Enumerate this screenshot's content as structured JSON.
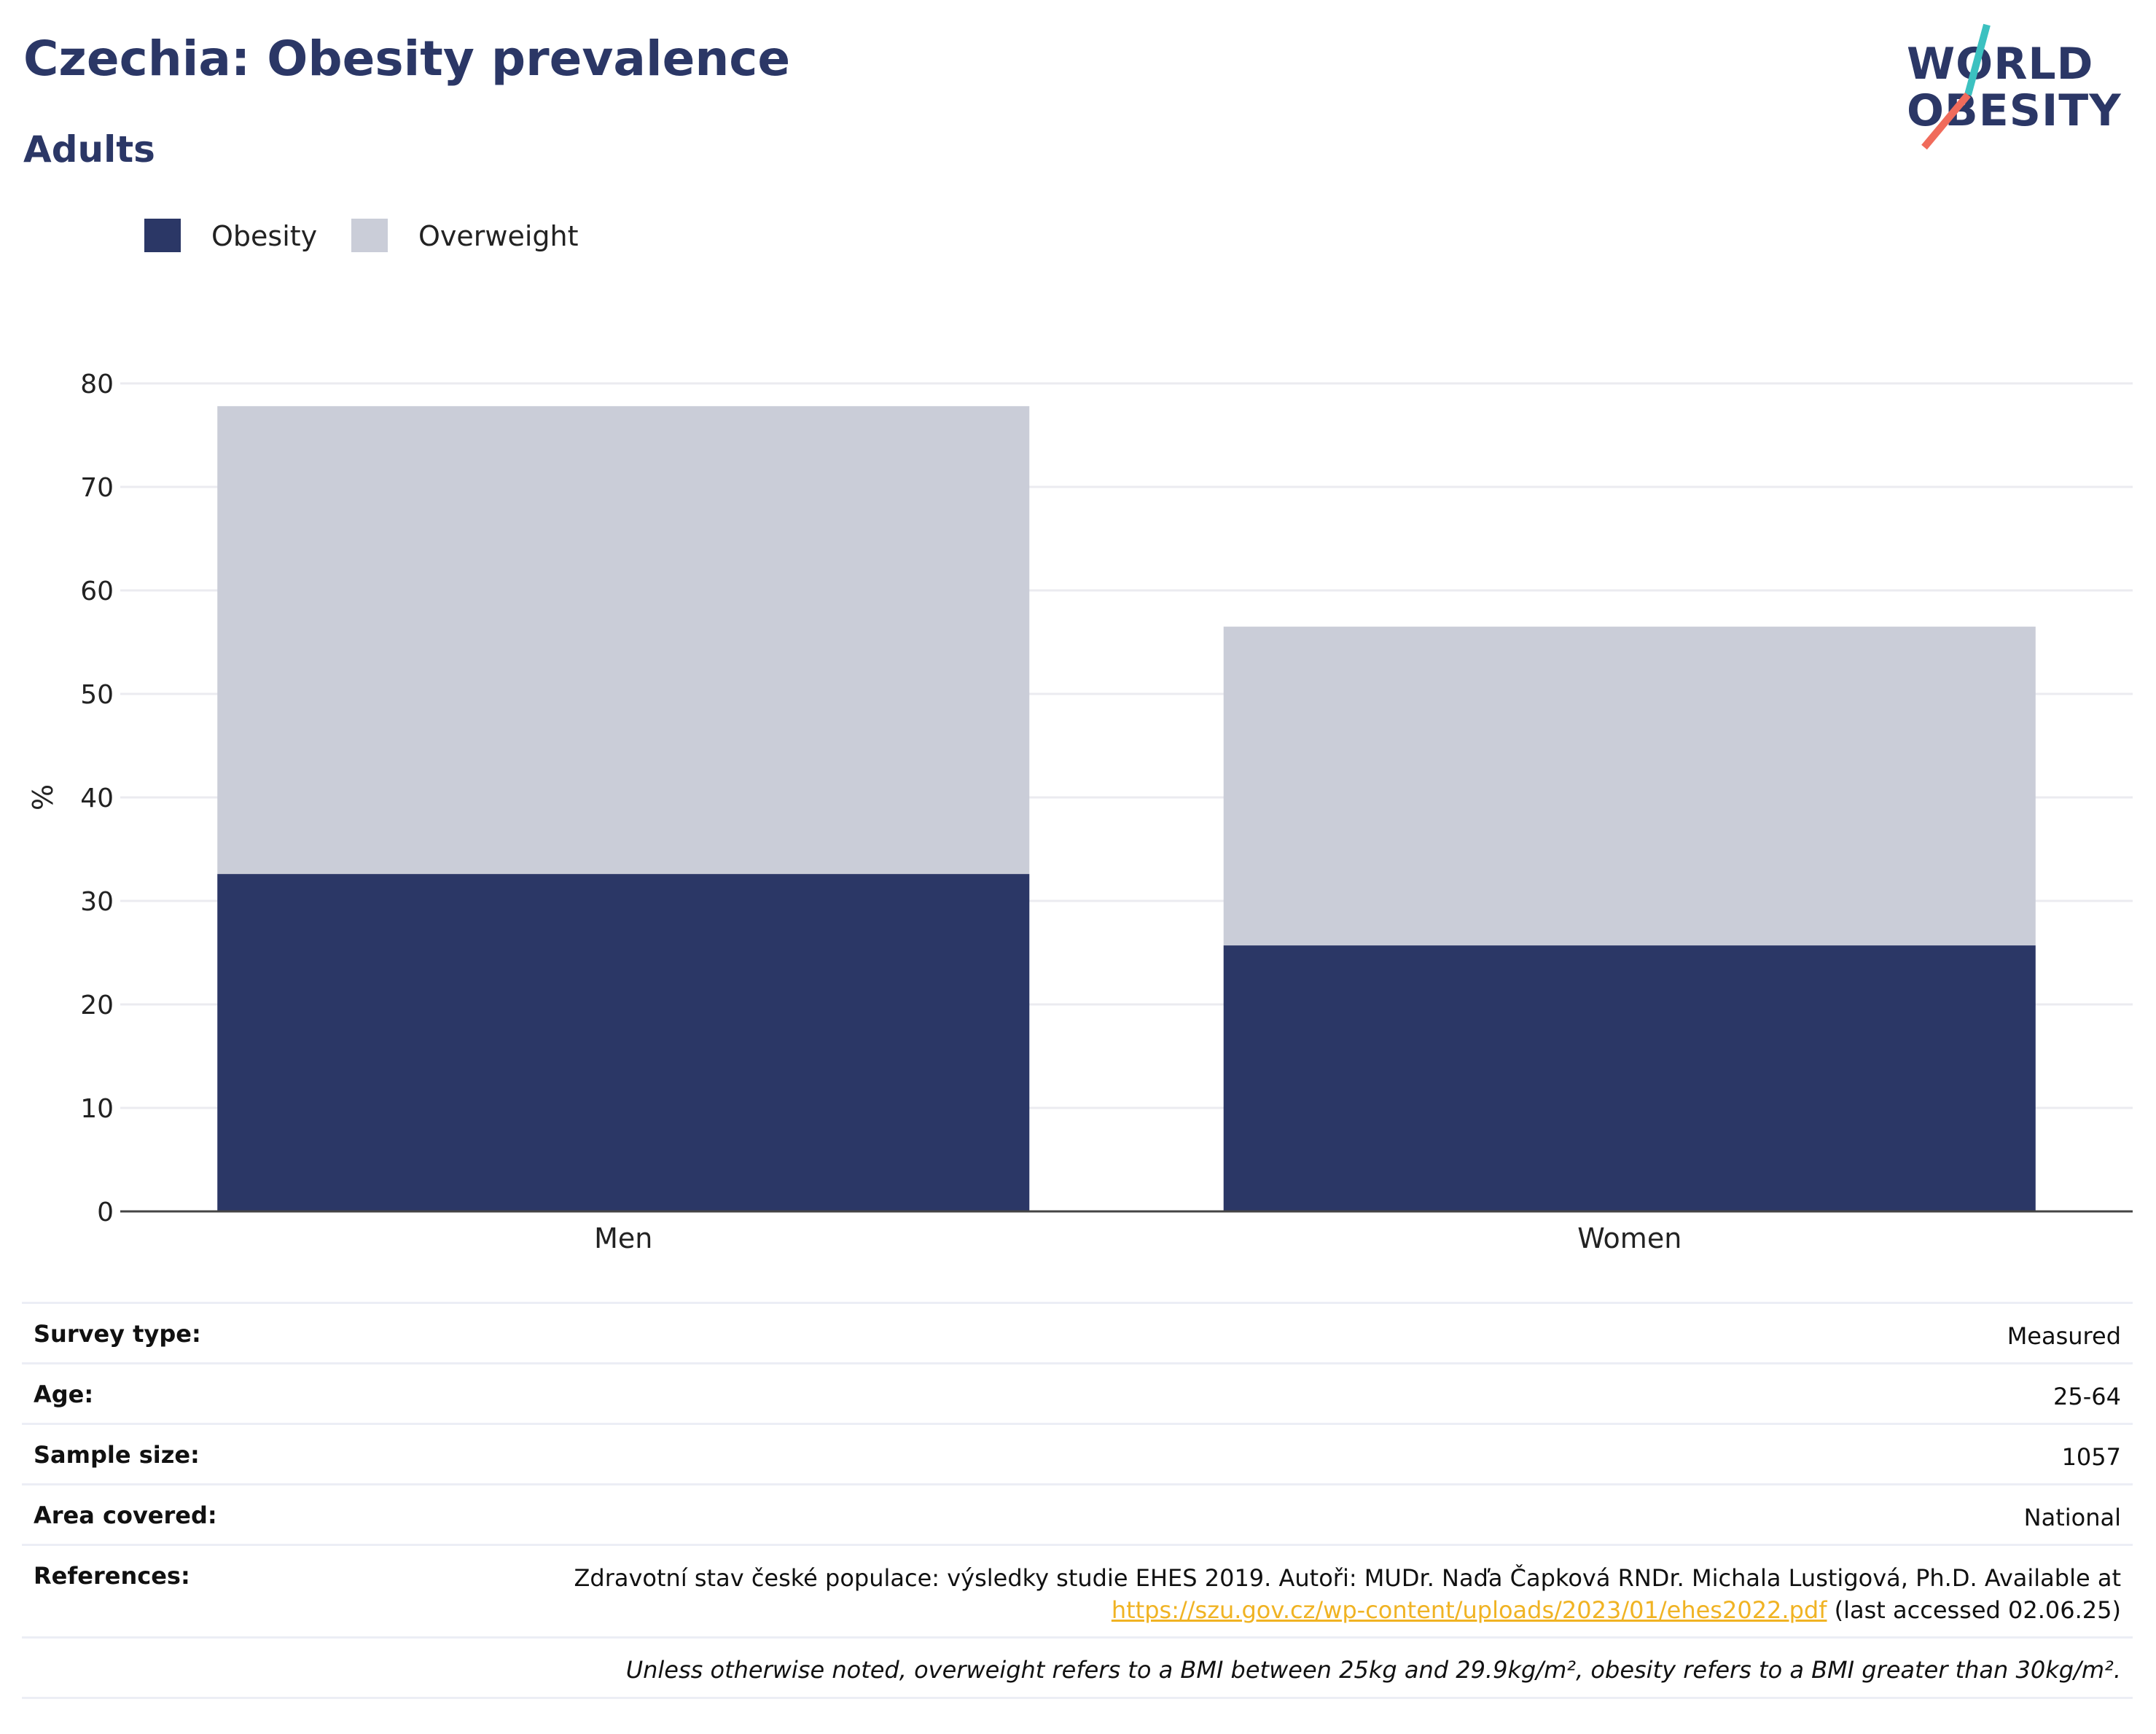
{
  "header": {
    "title": "Czechia: Obesity prevalence",
    "subtitle": "Adults"
  },
  "logo": {
    "line1": "WORLD",
    "line2": "OBESITY",
    "colors": {
      "text": "#2b3766",
      "slash_top": "#3cc1c0",
      "slash_bottom": "#f06b5b"
    }
  },
  "colors": {
    "obesity": "#2b3766",
    "overweight": "#cacdd8",
    "grid": "#ebebf0",
    "axis": "#444444",
    "link": "#f0b323"
  },
  "chart_data": {
    "type": "bar",
    "stacked": true,
    "categories": [
      "Men",
      "Women"
    ],
    "series": [
      {
        "name": "Obesity",
        "values": [
          32.6,
          25.7
        ]
      },
      {
        "name": "Overweight",
        "values": [
          45.2,
          30.8
        ]
      }
    ],
    "ylabel": "%",
    "xlabel": "",
    "ylim": [
      0,
      80
    ],
    "yticks": [
      "0",
      "10",
      "20",
      "30",
      "40",
      "50",
      "60",
      "70",
      "80"
    ],
    "grid": true,
    "legend_position": "top-left"
  },
  "details": {
    "survey_type": {
      "label": "Survey type:",
      "value": "Measured"
    },
    "age": {
      "label": "Age:",
      "value": "25-64"
    },
    "sample_size": {
      "label": "Sample size:",
      "value": "1057"
    },
    "area_covered": {
      "label": "Area covered:",
      "value": "National"
    },
    "references": {
      "label": "References:",
      "text": "Zdravotní stav české populace: výsledky studie EHES 2019. Autoři: MUDr. Naďa Čapková RNDr. Michala Lustigová, Ph.D. Available at",
      "link": "https://szu.gov.cz/wp-content/uploads/2023/01/ehes2022.pdf",
      "suffix": " (last accessed 02.06.25)"
    },
    "note": "Unless otherwise noted, overweight refers to a BMI between 25kg and 29.9kg/m², obesity refers to a BMI greater than 30kg/m²."
  }
}
